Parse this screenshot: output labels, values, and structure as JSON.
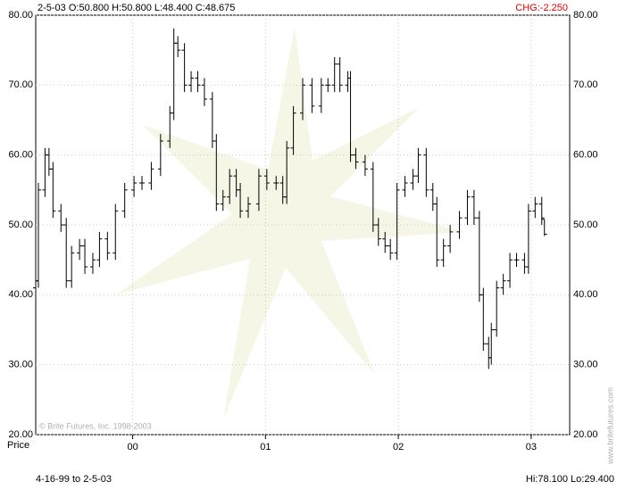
{
  "chart_data": {
    "type": "ohlc",
    "header": "2-5-03 O:50.800 H:50.800 L:48.400 C:48.675",
    "change": "CHG:-2.250",
    "change_color": "#e00000",
    "axis_label": "Price",
    "range_text": "4-16-99 to 2-5-03",
    "hilo_text": "Hi:78.100 Lo:29.400",
    "watermark": "© Brite Futures, Inc. 1998-2003",
    "website": "www.britefutures.com",
    "color": "#000000",
    "grid": true,
    "xlim": [
      1999.27,
      2003.29
    ],
    "ylim": [
      20,
      80
    ],
    "yticks": [
      {
        "value": 20,
        "label": "20.00"
      },
      {
        "value": 30,
        "label": "30.00"
      },
      {
        "value": 40,
        "label": "40.00"
      },
      {
        "value": 50,
        "label": "50.00"
      },
      {
        "value": 60,
        "label": "60.00"
      },
      {
        "value": 70,
        "label": "70.00"
      },
      {
        "value": 80,
        "label": "80.00"
      }
    ],
    "xticks": [
      {
        "value": 2000,
        "label": "00"
      },
      {
        "value": 2001,
        "label": "01"
      },
      {
        "value": 2002,
        "label": "02"
      },
      {
        "value": 2003,
        "label": "03"
      }
    ],
    "x": [
      1999.27,
      1999.29,
      1999.34,
      1999.37,
      1999.4,
      1999.46,
      1999.5,
      1999.54,
      1999.6,
      1999.64,
      1999.7,
      1999.75,
      1999.81,
      1999.87,
      1999.94,
      2000.01,
      2000.07,
      2000.14,
      2000.21,
      2000.28,
      2000.31,
      2000.34,
      2000.39,
      2000.44,
      2000.49,
      2000.54,
      2000.6,
      2000.63,
      2000.68,
      2000.73,
      2000.78,
      2000.81,
      2000.87,
      2000.95,
      2001.01,
      2001.08,
      2001.13,
      2001.16,
      2001.21,
      2001.28,
      2001.35,
      2001.42,
      2001.47,
      2001.52,
      2001.56,
      2001.62,
      2001.64,
      2001.68,
      2001.75,
      2001.81,
      2001.85,
      2001.9,
      2001.94,
      2001.99,
      2002.05,
      2002.11,
      2002.15,
      2002.21,
      2002.26,
      2002.29,
      2002.34,
      2002.39,
      2002.46,
      2002.52,
      2002.57,
      2002.61,
      2002.64,
      2002.68,
      2002.7,
      2002.74,
      2002.79,
      2002.84,
      2002.89,
      2002.95,
      2002.98,
      2003.03,
      2003.08,
      2003.1
    ],
    "open": [
      41,
      42,
      55,
      60,
      58,
      52,
      50,
      42,
      46,
      47,
      44,
      45,
      48,
      46,
      52,
      55,
      56,
      56,
      58,
      62,
      66,
      76,
      75,
      70,
      71,
      70,
      68,
      62,
      53,
      54,
      57,
      55,
      52,
      53,
      57,
      56,
      56,
      54,
      61,
      66,
      70,
      67,
      70,
      70,
      73,
      70,
      71,
      60,
      59,
      58,
      50,
      48,
      47,
      46,
      55,
      56,
      57,
      60,
      55,
      53,
      45,
      47,
      49,
      51,
      54,
      51,
      40,
      33,
      31,
      35,
      41,
      42,
      45,
      45,
      44,
      52,
      53,
      50.8
    ],
    "high": [
      43,
      56,
      61,
      61,
      59,
      53,
      51,
      47,
      48,
      48,
      46,
      49,
      49,
      53,
      56,
      57,
      57,
      59,
      63,
      67,
      78.1,
      77,
      76,
      72,
      72,
      71,
      69,
      63,
      55,
      58,
      58,
      56,
      54,
      58,
      58,
      57,
      57,
      62,
      67,
      71,
      71,
      71,
      71,
      74,
      74,
      72,
      72,
      61,
      60,
      59,
      51,
      49,
      48,
      56,
      57,
      58,
      61,
      61,
      56,
      54,
      48,
      50,
      52,
      55,
      55,
      52,
      41,
      34,
      36,
      42,
      43,
      46,
      46,
      46,
      53,
      54,
      54,
      50.8
    ],
    "low": [
      40,
      41,
      54,
      57,
      51,
      49,
      41,
      41,
      45,
      43,
      43,
      44,
      45,
      45,
      51,
      54,
      55,
      55,
      57,
      61,
      65,
      74,
      69,
      69,
      69,
      67,
      61,
      52,
      52,
      53,
      54,
      51,
      51,
      52,
      55,
      55,
      53,
      53,
      60,
      65,
      66,
      66,
      69,
      69,
      69,
      69,
      59,
      58,
      57,
      49,
      47,
      46,
      45,
      45,
      54,
      55,
      56,
      54,
      52,
      44,
      44,
      46,
      48,
      50,
      50,
      39,
      32,
      29.4,
      30,
      34,
      40,
      41,
      44,
      43,
      43,
      51,
      50,
      48.4
    ],
    "close": [
      42,
      55,
      60,
      58,
      52,
      50,
      42,
      46,
      47,
      44,
      45,
      48,
      46,
      52,
      55,
      56,
      56,
      58,
      62,
      66,
      76,
      75,
      70,
      71,
      70,
      68,
      62,
      53,
      54,
      57,
      55,
      52,
      53,
      57,
      56,
      56,
      54,
      61,
      66,
      70,
      67,
      70,
      70,
      73,
      70,
      71,
      60,
      59,
      58,
      50,
      48,
      47,
      46,
      55,
      56,
      57,
      60,
      55,
      53,
      45,
      47,
      49,
      51,
      54,
      51,
      40,
      33,
      31,
      35,
      41,
      42,
      45,
      45,
      44,
      52,
      53,
      51,
      48.675
    ]
  }
}
